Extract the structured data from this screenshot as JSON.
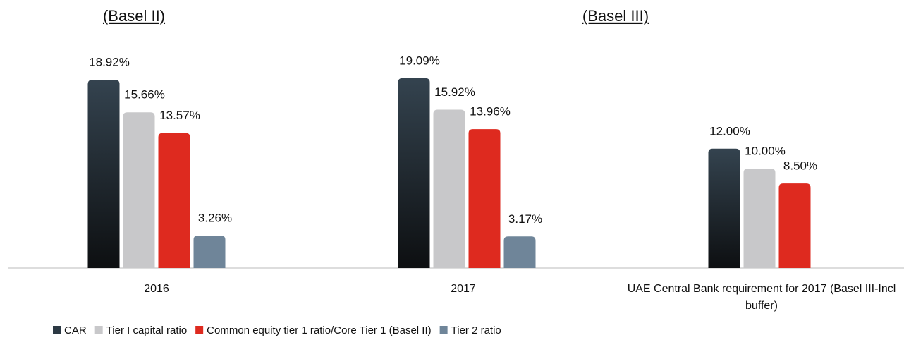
{
  "chart_data": {
    "type": "bar",
    "annotations": [
      "(Basel II)",
      "(Basel III)"
    ],
    "categories": [
      "2016",
      "2017",
      "UAE Central Bank requirement for 2017 (Basel III-Incl buffer)"
    ],
    "series": [
      {
        "name": "CAR",
        "color": "#2c3944",
        "values": [
          18.92,
          19.09,
          12.0
        ],
        "value_labels": [
          "18.92%",
          "19.09%",
          "12.00%"
        ]
      },
      {
        "name": "Tier I capital ratio",
        "color": "#c8c8ca",
        "values": [
          15.66,
          15.92,
          10.0
        ],
        "value_labels": [
          "15.66%",
          "15.92%",
          "10.00%"
        ]
      },
      {
        "name": "Common equity tier 1 ratio/Core Tier 1 (Basel II)",
        "color": "#de2a1f",
        "values": [
          13.57,
          13.96,
          8.5
        ],
        "value_labels": [
          "13.57%",
          "13.96%",
          "8.50%"
        ]
      },
      {
        "name": "Tier 2 ratio",
        "color": "#6f8599",
        "values": [
          3.26,
          3.17,
          null
        ],
        "value_labels": [
          "3.26%",
          "3.17%",
          null
        ]
      }
    ],
    "ylim": [
      0,
      20
    ]
  }
}
